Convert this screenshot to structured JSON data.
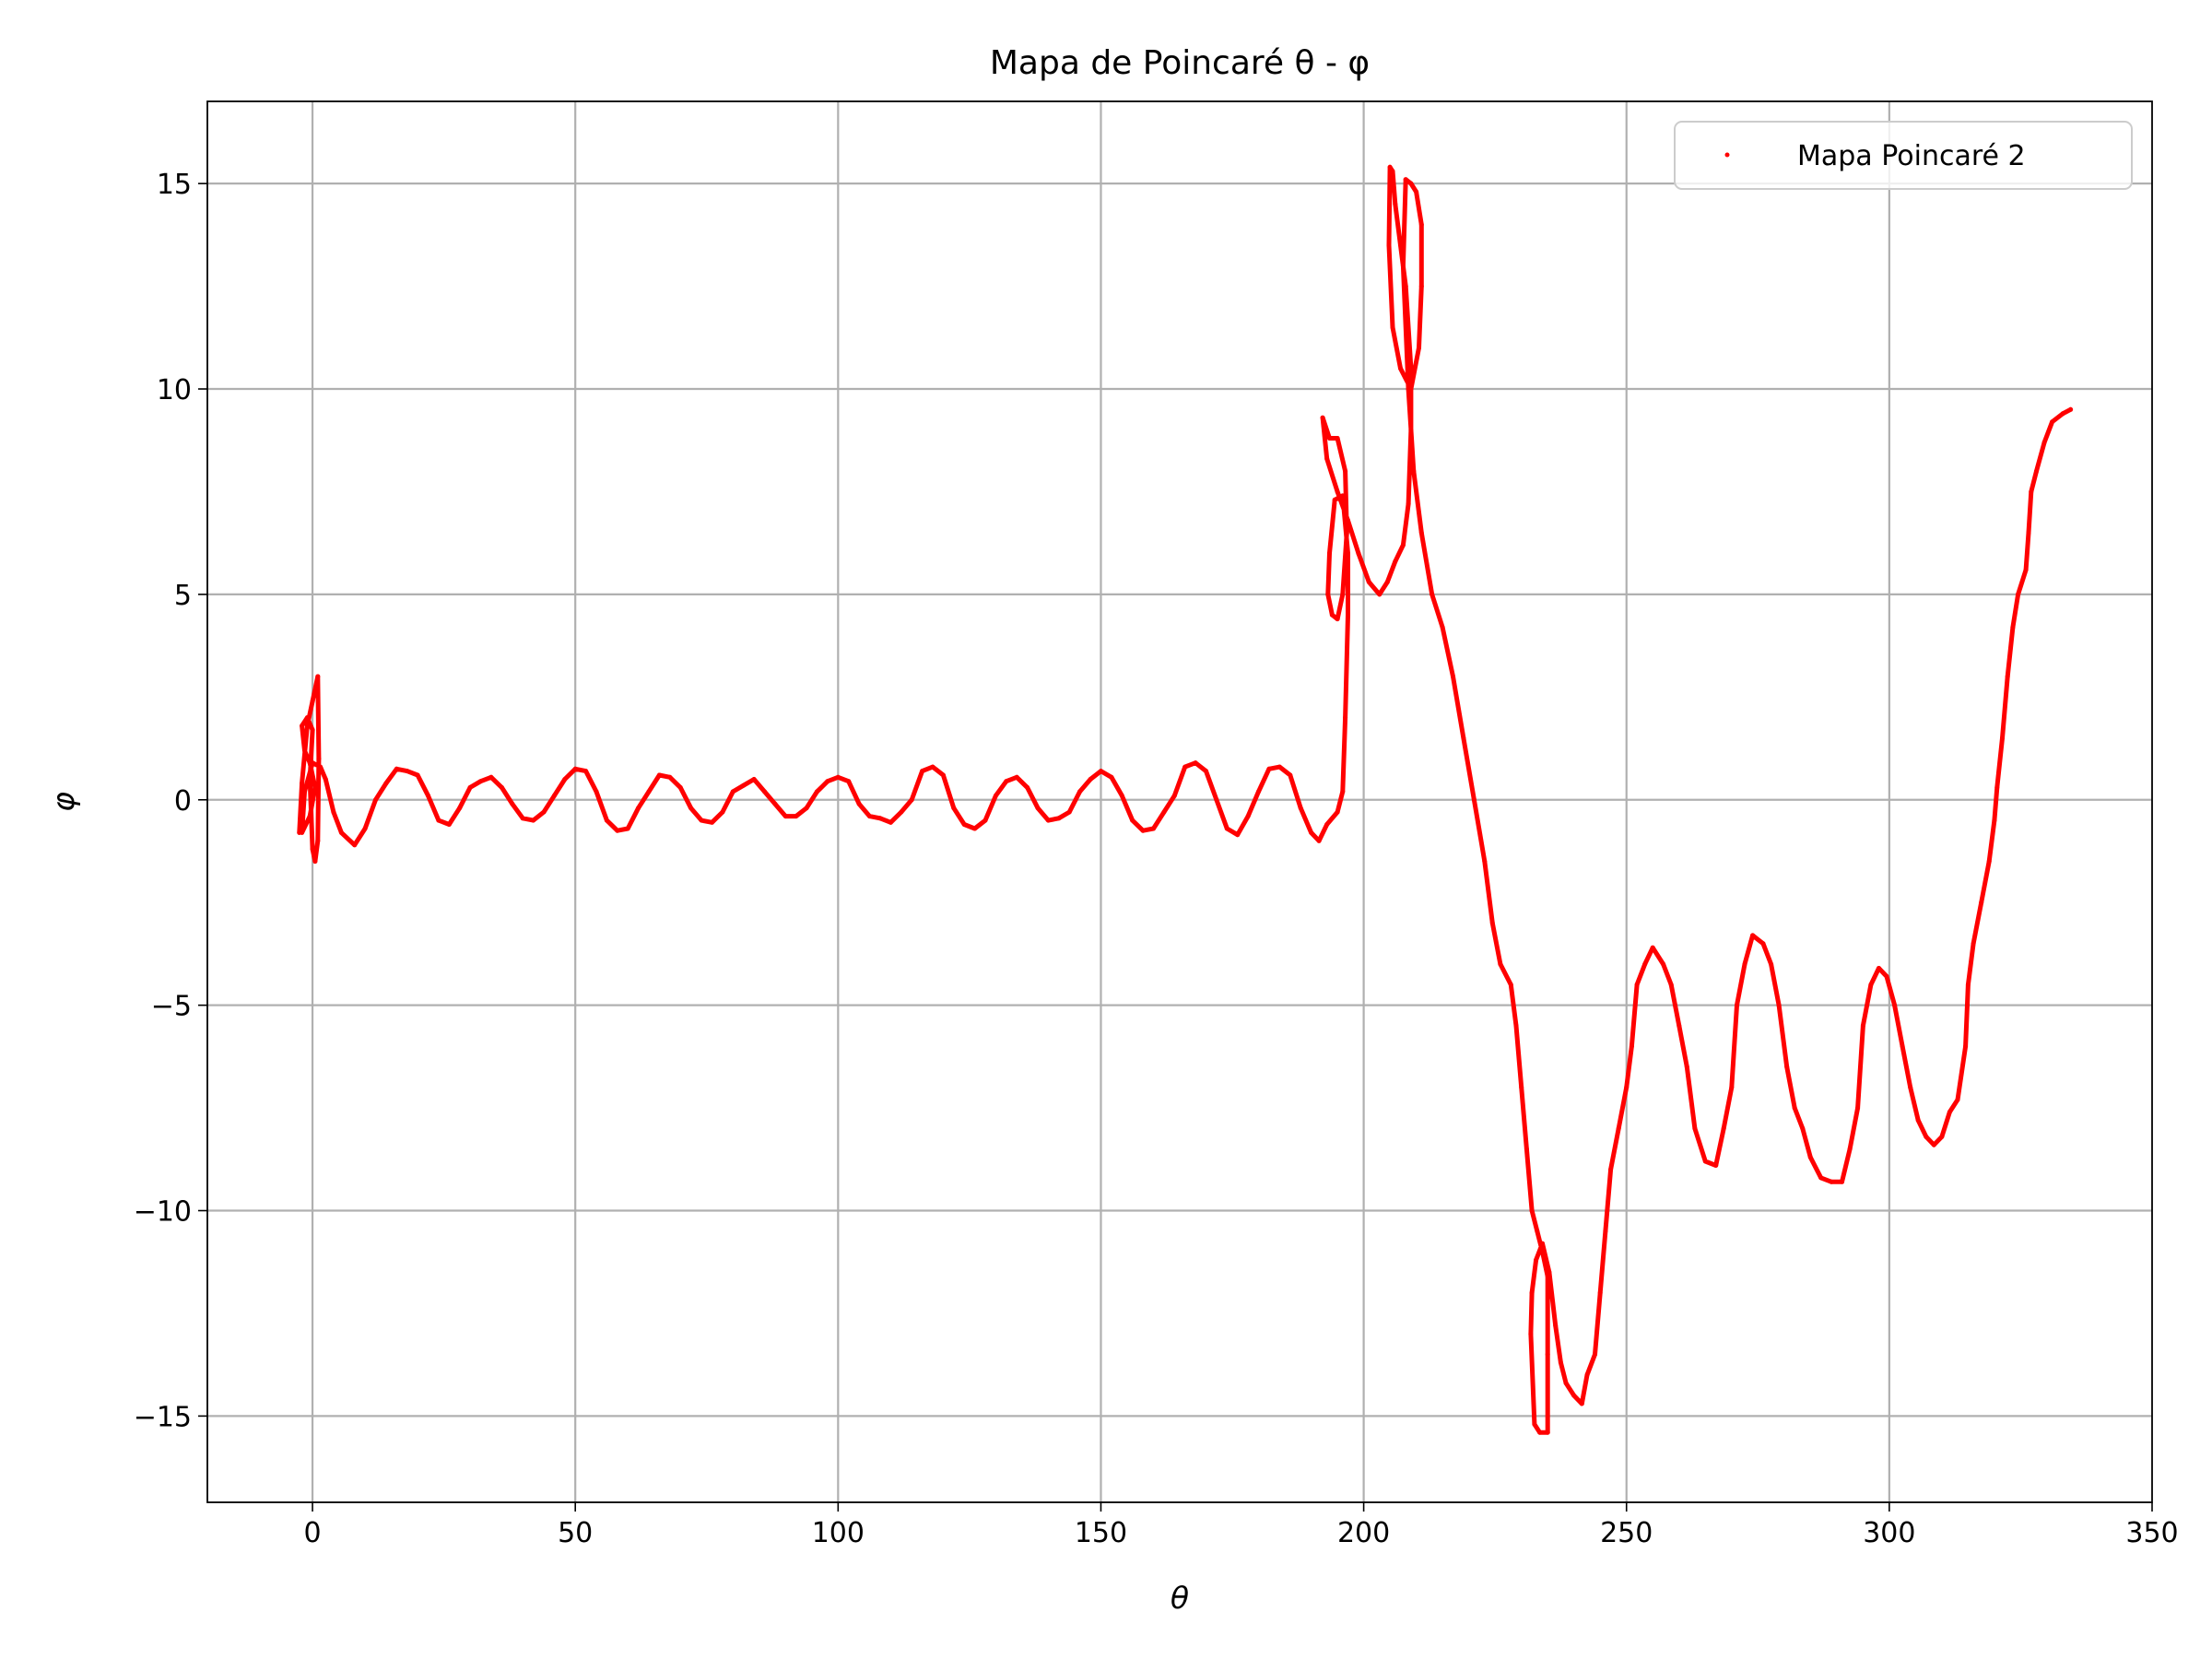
{
  "chart_data": {
    "type": "line",
    "title": "Mapa de Poincaré θ - φ",
    "xlabel": "θ",
    "ylabel": "φ",
    "xlim": [
      -20,
      350
    ],
    "ylim": [
      -17.1,
      17.0
    ],
    "xticks": [
      0,
      50,
      100,
      150,
      200,
      250,
      300,
      350
    ],
    "yticks": [
      -15,
      -10,
      -5,
      0,
      5,
      10,
      15
    ],
    "xtick_labels": [
      "0",
      "50",
      "100",
      "150",
      "200",
      "250",
      "300",
      "350"
    ],
    "ytick_labels": [
      "−15",
      "−10",
      "−5",
      "0",
      "5",
      "10",
      "15"
    ],
    "grid": true,
    "legend_position": "top-right",
    "series": [
      {
        "name": "Mapa Poincaré 2",
        "color": "#ff0000",
        "marker": "point",
        "points": [
          [
            -2.5,
            -0.8
          ],
          [
            -2.0,
            0.4
          ],
          [
            -1.0,
            1.8
          ],
          [
            0.0,
            2.4
          ],
          [
            1.0,
            3.0
          ],
          [
            1.2,
            1.0
          ],
          [
            1.0,
            -1.0
          ],
          [
            0.5,
            -1.5
          ],
          [
            0.0,
            -1.2
          ],
          [
            -0.5,
            0.5
          ],
          [
            0.0,
            1.7
          ],
          [
            -1.0,
            2.0
          ],
          [
            -2.0,
            1.8
          ],
          [
            -1.5,
            1.2
          ],
          [
            -0.5,
            0.9
          ],
          [
            0.5,
            0.3
          ],
          [
            -0.5,
            -0.4
          ],
          [
            -2.0,
            -0.8
          ],
          [
            -1.5,
            0.2
          ],
          [
            0.0,
            0.9
          ],
          [
            1.5,
            0.8
          ],
          [
            2.5,
            0.5
          ],
          [
            4.0,
            -0.3
          ],
          [
            5.5,
            -0.8
          ],
          [
            8.0,
            -1.1
          ],
          [
            10.0,
            -0.7
          ],
          [
            12.0,
            0.0
          ],
          [
            14.0,
            0.4
          ],
          [
            16.0,
            0.75
          ],
          [
            18.0,
            0.7
          ],
          [
            20.0,
            0.6
          ],
          [
            22.0,
            0.1
          ],
          [
            24.0,
            -0.5
          ],
          [
            26.0,
            -0.6
          ],
          [
            28.0,
            -0.2
          ],
          [
            30.0,
            0.3
          ],
          [
            32.0,
            0.45
          ],
          [
            34.0,
            0.55
          ],
          [
            36.0,
            0.3
          ],
          [
            38.0,
            -0.1
          ],
          [
            40.0,
            -0.45
          ],
          [
            42.0,
            -0.5
          ],
          [
            44.0,
            -0.3
          ],
          [
            46.0,
            0.1
          ],
          [
            48.0,
            0.5
          ],
          [
            50.0,
            0.75
          ],
          [
            52.0,
            0.7
          ],
          [
            54.0,
            0.2
          ],
          [
            56.0,
            -0.5
          ],
          [
            58.0,
            -0.75
          ],
          [
            60.0,
            -0.7
          ],
          [
            62.0,
            -0.2
          ],
          [
            64.0,
            0.2
          ],
          [
            66.0,
            0.6
          ],
          [
            68.0,
            0.55
          ],
          [
            70.0,
            0.3
          ],
          [
            72.0,
            -0.2
          ],
          [
            74.0,
            -0.5
          ],
          [
            76.0,
            -0.55
          ],
          [
            78.0,
            -0.3
          ],
          [
            80.0,
            0.2
          ],
          [
            82.0,
            0.35
          ],
          [
            84.0,
            0.5
          ],
          [
            86.0,
            0.2
          ],
          [
            88.0,
            -0.1
          ],
          [
            90.0,
            -0.4
          ],
          [
            92.0,
            -0.4
          ],
          [
            94.0,
            -0.2
          ],
          [
            96.0,
            0.2
          ],
          [
            98.0,
            0.45
          ],
          [
            100.0,
            0.55
          ],
          [
            102.0,
            0.45
          ],
          [
            104.0,
            -0.1
          ],
          [
            106.0,
            -0.4
          ],
          [
            108.0,
            -0.45
          ],
          [
            110.0,
            -0.55
          ],
          [
            112.0,
            -0.3
          ],
          [
            114.0,
            0.0
          ],
          [
            116.0,
            0.7
          ],
          [
            118.0,
            0.8
          ],
          [
            120.0,
            0.6
          ],
          [
            122.0,
            -0.2
          ],
          [
            124.0,
            -0.6
          ],
          [
            126.0,
            -0.7
          ],
          [
            128.0,
            -0.5
          ],
          [
            130.0,
            0.1
          ],
          [
            132.0,
            0.45
          ],
          [
            134.0,
            0.55
          ],
          [
            136.0,
            0.3
          ],
          [
            138.0,
            -0.2
          ],
          [
            140.0,
            -0.5
          ],
          [
            142.0,
            -0.45
          ],
          [
            144.0,
            -0.3
          ],
          [
            146.0,
            0.2
          ],
          [
            148.0,
            0.5
          ],
          [
            150.0,
            0.7
          ],
          [
            152.0,
            0.55
          ],
          [
            154.0,
            0.1
          ],
          [
            156.0,
            -0.5
          ],
          [
            158.0,
            -0.75
          ],
          [
            160.0,
            -0.7
          ],
          [
            162.0,
            -0.3
          ],
          [
            164.0,
            0.1
          ],
          [
            166.0,
            0.8
          ],
          [
            168.0,
            0.9
          ],
          [
            170.0,
            0.7
          ],
          [
            172.0,
            0.0
          ],
          [
            174.0,
            -0.7
          ],
          [
            176.0,
            -0.85
          ],
          [
            178.0,
            -0.4
          ],
          [
            180.0,
            0.2
          ],
          [
            182.0,
            0.75
          ],
          [
            184.0,
            0.8
          ],
          [
            186.0,
            0.6
          ],
          [
            188.0,
            -0.2
          ],
          [
            190.0,
            -0.8
          ],
          [
            191.5,
            -1.0
          ],
          [
            193.0,
            -0.6
          ],
          [
            195.0,
            -0.3
          ],
          [
            196.0,
            0.2
          ],
          [
            196.5,
            2.0
          ],
          [
            197.0,
            4.5
          ],
          [
            197.0,
            6.0
          ],
          [
            196.0,
            7.4
          ],
          [
            194.5,
            7.3
          ],
          [
            193.5,
            6.0
          ],
          [
            193.2,
            5.0
          ],
          [
            194.0,
            4.5
          ],
          [
            195.0,
            4.4
          ],
          [
            196.0,
            5.0
          ],
          [
            196.8,
            6.5
          ],
          [
            196.5,
            8.0
          ],
          [
            195.0,
            8.8
          ],
          [
            193.5,
            8.8
          ],
          [
            192.2,
            9.3
          ],
          [
            193.0,
            8.3
          ],
          [
            195.0,
            7.5
          ],
          [
            197.0,
            6.8
          ],
          [
            199.0,
            6.0
          ],
          [
            201.0,
            5.3
          ],
          [
            203.0,
            5.0
          ],
          [
            204.5,
            5.3
          ],
          [
            206.0,
            5.8
          ],
          [
            207.5,
            6.2
          ],
          [
            208.5,
            7.2
          ],
          [
            209.0,
            9.0
          ],
          [
            209.0,
            10.5
          ],
          [
            208.0,
            12.5
          ],
          [
            207.0,
            13.5
          ],
          [
            206.0,
            14.5
          ],
          [
            205.5,
            15.3
          ],
          [
            205.0,
            15.4
          ],
          [
            204.8,
            13.5
          ],
          [
            205.5,
            11.5
          ],
          [
            207.0,
            10.5
          ],
          [
            209.0,
            10.0
          ],
          [
            210.5,
            11.0
          ],
          [
            211.0,
            12.5
          ],
          [
            211.0,
            14.0
          ],
          [
            210.0,
            14.8
          ],
          [
            209.0,
            15.0
          ],
          [
            208.0,
            15.1
          ],
          [
            207.5,
            13.0
          ],
          [
            208.5,
            10.0
          ],
          [
            209.5,
            8.0
          ],
          [
            211.0,
            6.5
          ],
          [
            213.0,
            5.0
          ],
          [
            215.0,
            4.2
          ],
          [
            217.0,
            3.0
          ],
          [
            219.0,
            1.5
          ],
          [
            221.0,
            0.0
          ],
          [
            223.0,
            -1.5
          ],
          [
            224.5,
            -3.0
          ],
          [
            226.0,
            -4.0
          ],
          [
            228.0,
            -4.5
          ],
          [
            229.0,
            -5.5
          ],
          [
            230.0,
            -7.0
          ],
          [
            231.0,
            -8.5
          ],
          [
            232.0,
            -10.0
          ],
          [
            233.0,
            -10.5
          ],
          [
            234.0,
            -11.0
          ],
          [
            235.0,
            -11.6
          ],
          [
            235.0,
            -13.5
          ],
          [
            235.0,
            -15.4
          ],
          [
            233.5,
            -15.4
          ],
          [
            232.5,
            -15.2
          ],
          [
            231.8,
            -13.0
          ],
          [
            232.0,
            -12.0
          ],
          [
            232.8,
            -11.2
          ],
          [
            234.0,
            -10.8
          ],
          [
            235.3,
            -11.5
          ],
          [
            236.5,
            -12.8
          ],
          [
            237.5,
            -13.7
          ],
          [
            238.5,
            -14.2
          ],
          [
            240.0,
            -14.5
          ],
          [
            241.5,
            -14.7
          ],
          [
            242.5,
            -14.0
          ],
          [
            244.0,
            -13.5
          ],
          [
            245.0,
            -12.0
          ],
          [
            246.0,
            -10.5
          ],
          [
            247.0,
            -9.0
          ],
          [
            248.5,
            -8.0
          ],
          [
            250.0,
            -7.0
          ],
          [
            251.0,
            -6.0
          ],
          [
            252.0,
            -4.5
          ],
          [
            253.5,
            -4.0
          ],
          [
            255.0,
            -3.6
          ],
          [
            257.0,
            -4.0
          ],
          [
            258.5,
            -4.5
          ],
          [
            260.0,
            -5.5
          ],
          [
            261.5,
            -6.5
          ],
          [
            263.0,
            -8.0
          ],
          [
            265.0,
            -8.8
          ],
          [
            267.0,
            -8.9
          ],
          [
            268.5,
            -8.0
          ],
          [
            270.0,
            -7.0
          ],
          [
            271.0,
            -5.0
          ],
          [
            272.5,
            -4.0
          ],
          [
            274.0,
            -3.3
          ],
          [
            276.0,
            -3.5
          ],
          [
            277.5,
            -4.0
          ],
          [
            279.0,
            -5.0
          ],
          [
            280.5,
            -6.5
          ],
          [
            282.0,
            -7.5
          ],
          [
            283.5,
            -8.0
          ],
          [
            285.0,
            -8.7
          ],
          [
            287.0,
            -9.2
          ],
          [
            289.0,
            -9.3
          ],
          [
            291.0,
            -9.3
          ],
          [
            292.5,
            -8.5
          ],
          [
            294.0,
            -7.5
          ],
          [
            295.0,
            -5.5
          ],
          [
            296.5,
            -4.5
          ],
          [
            298.0,
            -4.1
          ],
          [
            299.5,
            -4.3
          ],
          [
            301.0,
            -5.0
          ],
          [
            302.5,
            -6.0
          ],
          [
            304.0,
            -7.0
          ],
          [
            305.5,
            -7.8
          ],
          [
            307.0,
            -8.2
          ],
          [
            308.5,
            -8.4
          ],
          [
            310.0,
            -8.2
          ],
          [
            311.5,
            -7.6
          ],
          [
            313.0,
            -7.3
          ],
          [
            314.5,
            -6.0
          ],
          [
            315.0,
            -4.5
          ],
          [
            316.0,
            -3.5
          ],
          [
            317.5,
            -2.5
          ],
          [
            319.0,
            -1.5
          ],
          [
            320.0,
            -0.5
          ],
          [
            320.5,
            0.3
          ],
          [
            321.5,
            1.5
          ],
          [
            322.5,
            3.0
          ],
          [
            323.5,
            4.2
          ],
          [
            324.5,
            5.0
          ],
          [
            326.0,
            5.6
          ],
          [
            326.5,
            6.5
          ],
          [
            327.0,
            7.5
          ],
          [
            328.0,
            8.0
          ],
          [
            329.5,
            8.7
          ],
          [
            331.0,
            9.2
          ],
          [
            333.0,
            9.4
          ],
          [
            334.5,
            9.5
          ]
        ]
      }
    ]
  }
}
